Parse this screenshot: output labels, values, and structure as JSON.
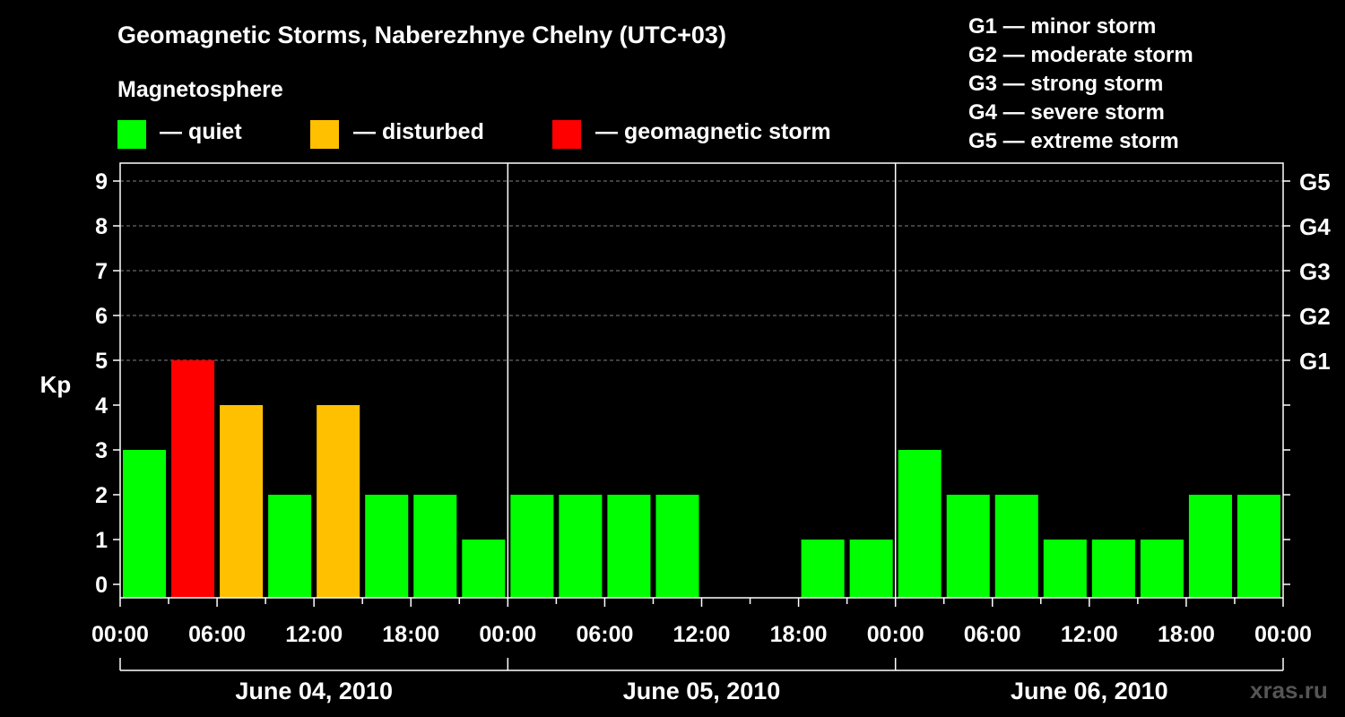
{
  "chart_data": {
    "type": "bar",
    "title": "Geomagnetic Storms, Naberezhnye Chelny (UTC+03)",
    "ylabel": "Kp",
    "ylim": [
      0,
      9
    ],
    "yticks": [
      "0",
      "1",
      "2",
      "3",
      "4",
      "5",
      "6",
      "7",
      "8",
      "9"
    ],
    "right_axis": [
      {
        "kp": 5,
        "label": "G1"
      },
      {
        "kp": 6,
        "label": "G2"
      },
      {
        "kp": 7,
        "label": "G3"
      },
      {
        "kp": 8,
        "label": "G4"
      },
      {
        "kp": 9,
        "label": "G5"
      }
    ],
    "grid_dashed_at_kp": [
      5,
      6,
      7,
      8,
      9
    ],
    "xticks": [
      "00:00",
      "06:00",
      "12:00",
      "18:00",
      "00:00",
      "06:00",
      "12:00",
      "18:00",
      "00:00",
      "06:00",
      "12:00",
      "18:00",
      "00:00"
    ],
    "days": [
      "June 04, 2010",
      "June 05, 2010",
      "June 06, 2010"
    ],
    "interval_hours": 3,
    "values": [
      3,
      5,
      4,
      2,
      4,
      2,
      2,
      1,
      2,
      2,
      2,
      2,
      0,
      0,
      1,
      1,
      3,
      2,
      2,
      1,
      1,
      1,
      2,
      2
    ],
    "color_rule": {
      "quiet_max": 3,
      "disturbed_max": 4
    }
  },
  "legend": {
    "heading": "Magnetosphere",
    "items": [
      {
        "label": "— quiet",
        "color": "#00FF00"
      },
      {
        "label": "— disturbed",
        "color": "#FFC000"
      },
      {
        "label": "— geomagnetic storm",
        "color": "#FF0000"
      }
    ]
  },
  "storm_levels": [
    "G1 — minor storm",
    "G2 — moderate storm",
    "G3 — strong storm",
    "G4 — severe storm",
    "G5 — extreme storm"
  ],
  "watermark": "xras.ru",
  "colors": {
    "background": "#000000",
    "axis": "#FFFFFF",
    "grid": "#808080",
    "watermark": "#555555"
  }
}
